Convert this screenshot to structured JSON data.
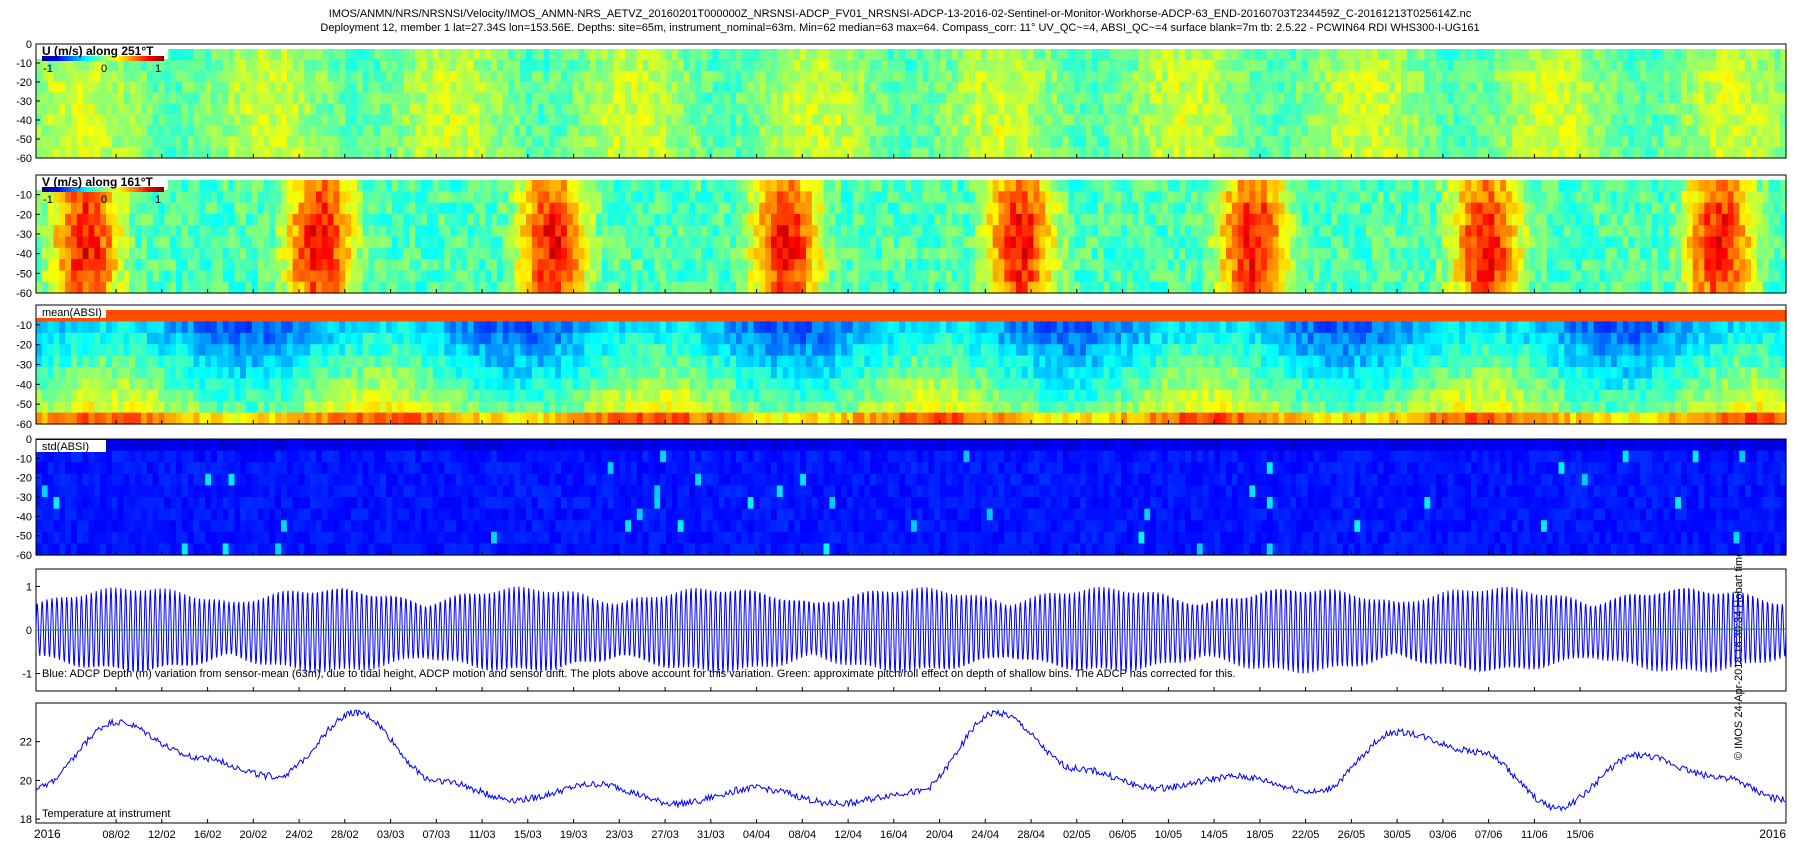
{
  "header": {
    "line1": "IMOS/ANMN/NRS/NRSNSI/Velocity/IMOS_ANMN-NRS_AETVZ_20160201T000000Z_NRSNSI-ADCP_FV01_NRSNSI-ADCP-13-2016-02-Sentinel-or-Monitor-Workhorse-ADCP-63_END-20160703T234459Z_C-20161213T025614Z.nc",
    "line2": "Deployment 12, member 1 lat=27.34S lon=153.56E. Depths: site=65m, instrument_nominal=63m. Min=62 median=63 max=64. Compass_corr: 11° UV_QC~=4, ABSI_QC~=4 surface blank=7m tb: 2.5.22 - PCWIN64 RDI WHS300-I-UG161"
  },
  "side_note": "© IMOS 24-Apr-2018 16:30:34 Hobart time",
  "colors": {
    "series_blue": "#0000ff",
    "series_green": "#00a000"
  },
  "chart_data": [
    {
      "type": "heatmap",
      "label": "U (m/s) along 251°T",
      "colorbar_ticks": [
        "-1",
        "0",
        "1"
      ],
      "clim": [
        -1.2,
        1.2
      ],
      "yticks": [
        "0",
        "-10",
        "-20",
        "-30",
        "-40",
        "-50",
        "-60"
      ],
      "ylim": [
        -60,
        0
      ],
      "colormap": "jet"
    },
    {
      "type": "heatmap",
      "label": "V (m/s) along 161°T",
      "colorbar_ticks": [
        "-1",
        "0",
        "1"
      ],
      "clim": [
        -1.2,
        1.2
      ],
      "yticks": [
        "-10",
        "-20",
        "-30",
        "-40",
        "-50",
        "-60"
      ],
      "ylim": [
        -60,
        0
      ],
      "colormap": "jet"
    },
    {
      "type": "heatmap",
      "label": "mean(ABSI)",
      "yticks": [
        "-10",
        "-20",
        "-30",
        "-40",
        "-50",
        "-60"
      ],
      "ylim": [
        -60,
        0
      ],
      "colormap": "jet"
    },
    {
      "type": "heatmap",
      "label": "std(ABSI)",
      "yticks": [
        "0",
        "-10",
        "-20",
        "-30",
        "-40",
        "-50",
        "-60"
      ],
      "ylim": [
        -60,
        0
      ],
      "colormap": "jet"
    },
    {
      "type": "line",
      "annotation": "Blue: ADCP Depth (m) variation from sensor-mean (63m), due to tidal height, ADCP motion and sensor drift. The plots above account for this variation. Green: approximate pitch/roll effect on depth of shallow bins. The ADCP has corrected for this.",
      "yticks": [
        "1",
        "0",
        "-1"
      ],
      "ylim": [
        -1.4,
        1.4
      ],
      "series": [
        {
          "color": "#0000ff",
          "description": "tidal depth variation, amplitude ~0.6–1.0 m"
        },
        {
          "color": "#00a000",
          "description": "pitch/roll effect, near 0"
        }
      ]
    },
    {
      "type": "line",
      "annotation": "Temperature at instrument",
      "yticks": [
        "22",
        "20",
        "18"
      ],
      "ylim": [
        17.8,
        24
      ],
      "x_dates": [
        "2016-02-01",
        "2016-02-08",
        "2016-02-15",
        "2016-02-22",
        "2016-02-29",
        "2016-03-07",
        "2016-03-14",
        "2016-03-21",
        "2016-03-28",
        "2016-04-04",
        "2016-04-11",
        "2016-04-18",
        "2016-04-25",
        "2016-05-02",
        "2016-05-09",
        "2016-05-16",
        "2016-05-23",
        "2016-05-30",
        "2016-06-06",
        "2016-06-13",
        "2016-06-20",
        "2016-06-27",
        "2016-07-03"
      ],
      "values": [
        19.6,
        23.0,
        21.2,
        20.2,
        23.5,
        20.0,
        19.0,
        19.8,
        18.8,
        19.6,
        18.8,
        19.4,
        23.5,
        20.6,
        19.6,
        20.2,
        19.4,
        22.5,
        21.5,
        18.6,
        21.3,
        20.2,
        19.0
      ]
    }
  ],
  "xaxis": {
    "start_label": "2016",
    "end_label": "2016",
    "ticks": [
      "08/02",
      "12/02",
      "16/02",
      "20/02",
      "24/02",
      "28/02",
      "03/03",
      "07/03",
      "11/03",
      "15/03",
      "19/03",
      "23/03",
      "27/03",
      "31/03",
      "04/04",
      "08/04",
      "12/04",
      "16/04",
      "20/04",
      "24/04",
      "28/04",
      "02/05",
      "06/05",
      "10/05",
      "14/05",
      "18/05",
      "22/05",
      "26/05",
      "30/05",
      "03/06",
      "07/06",
      "11/06",
      "15/06"
    ]
  }
}
